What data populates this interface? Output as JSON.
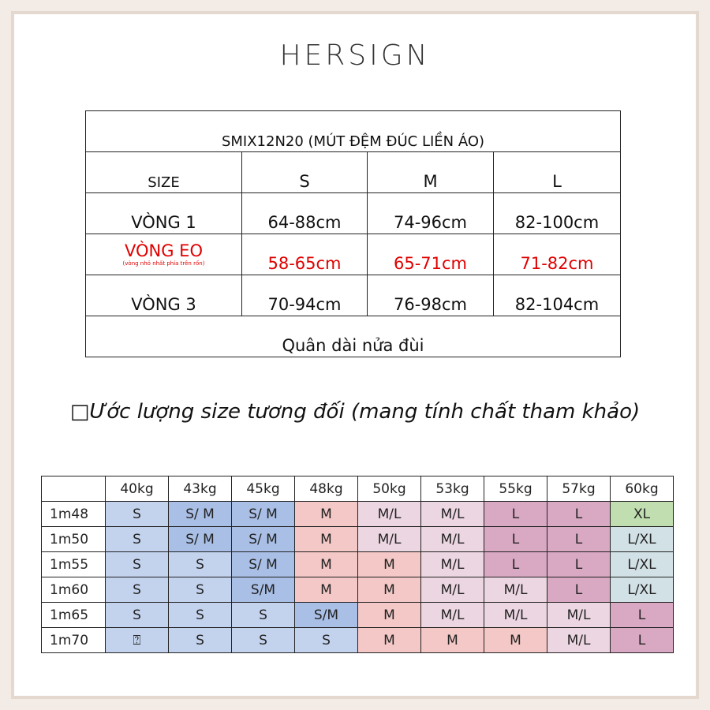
{
  "header": {
    "brand": "HERSIGN"
  },
  "size_table": {
    "title": "SMIX12N20 (MÚT ĐỆM ĐÚC LIỀN ÁO)",
    "columns": [
      "SIZE",
      "S",
      "M",
      "L"
    ],
    "rows": [
      [
        "VÒNG 1",
        "64-88cm",
        "74-96cm",
        "82-100cm"
      ],
      [
        "VÒNG EO",
        "58-65cm",
        "65-71cm",
        "71-82cm"
      ],
      [
        "VÒNG 3",
        "70-94cm",
        "76-98cm",
        "82-104cm"
      ]
    ],
    "waist_note": "(vòng nhỏ nhất phía trên rốn)",
    "footer": "Quân dài nửa đùi"
  },
  "heading": "□Ước lượng size tương đối (mang tính chất tham khảo)",
  "estimate_table": {
    "weights": [
      "40kg",
      "43kg",
      "45kg",
      "48kg",
      "50kg",
      "53kg",
      "55kg",
      "57kg",
      "60kg"
    ],
    "heights": [
      "1m48",
      "1m50",
      "1m55",
      "1m60",
      "1m65",
      "1m70"
    ],
    "rows": [
      [
        "S",
        "S/ M",
        "S/ M",
        "M",
        "M/L",
        "M/L",
        "L",
        "L",
        "XL"
      ],
      [
        "S",
        "S/ M",
        "S/ M",
        "M",
        "M/L",
        "M/L",
        "L",
        "L",
        "L/XL"
      ],
      [
        "S",
        "S",
        "S/ M",
        "M",
        "M",
        "M/L",
        "L",
        "L",
        "L/XL"
      ],
      [
        "S",
        "S",
        "S/M",
        "M",
        "M",
        "M/L",
        "M/L",
        "L",
        "L/XL"
      ],
      [
        "S",
        "S",
        "S",
        "S/M",
        "M",
        "M/L",
        "M/L",
        "M/L",
        "L"
      ],
      [
        "⍰",
        "S",
        "S",
        "S",
        "M",
        "M",
        "M",
        "M/L",
        "L"
      ]
    ],
    "fills": [
      [
        "#c3d3ee",
        "#a9bfe6",
        "#a9bfe6",
        "#f3c8c6",
        "#ecd6e1",
        "#ecd6e1",
        "#d9a9c4",
        "#d9a9c4",
        "#c1deb0"
      ],
      [
        "#c3d3ee",
        "#a9bfe6",
        "#a9bfe6",
        "#f3c8c6",
        "#ecd6e1",
        "#ecd6e1",
        "#d9a9c4",
        "#d9a9c4",
        "#d2e1e6"
      ],
      [
        "#c3d3ee",
        "#c3d3ee",
        "#a9bfe6",
        "#f3c8c6",
        "#f3c8c6",
        "#ecd6e1",
        "#d9a9c4",
        "#d9a9c4",
        "#d2e1e6"
      ],
      [
        "#c3d3ee",
        "#c3d3ee",
        "#a9bfe6",
        "#f3c8c6",
        "#f3c8c6",
        "#ecd6e1",
        "#ecd6e1",
        "#d9a9c4",
        "#d2e1e6"
      ],
      [
        "#c3d3ee",
        "#c3d3ee",
        "#c3d3ee",
        "#a9bfe6",
        "#f3c8c6",
        "#ecd6e1",
        "#ecd6e1",
        "#ecd6e1",
        "#d9a9c4"
      ],
      [
        "#c3d3ee",
        "#c3d3ee",
        "#c3d3ee",
        "#c3d3ee",
        "#f3c8c6",
        "#f3c8c6",
        "#f3c8c6",
        "#ecd6e1",
        "#d9a9c4"
      ]
    ]
  }
}
